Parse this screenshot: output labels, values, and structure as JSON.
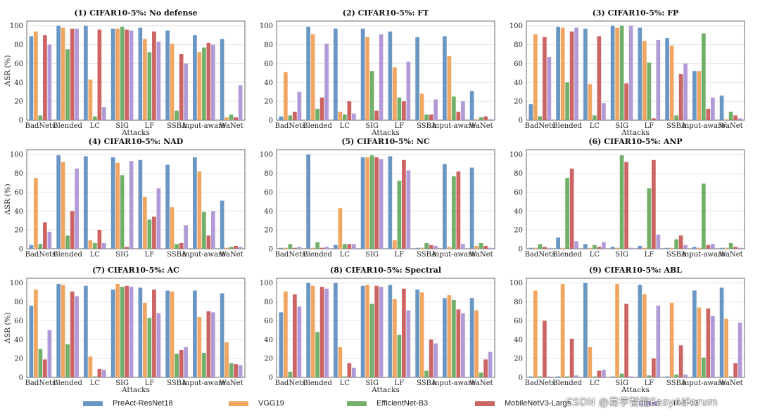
{
  "colors": [
    "#6a96c4",
    "#f0a660",
    "#72b06a",
    "#cd6464",
    "#b29ad6"
  ],
  "legend": [
    "PreAct-ResNet18",
    "VGG19",
    "EfficientNet-B3",
    "MobileNetV3-Large",
    "ViT-B-16"
  ],
  "watermark": "CSDN @易学智能EasyAIForum",
  "chart_data": [
    {
      "type": "bar",
      "title": "(1) CIFAR10-5%: No defense",
      "xlabel": "Attacks",
      "ylabel": "ASR (%)",
      "ylim": [
        0,
        105
      ],
      "yticks": [
        0,
        20,
        40,
        60,
        80,
        100
      ],
      "categories": [
        "BadNets",
        "Blended",
        "LC",
        "SIG",
        "LF",
        "SSBA",
        "Input-aware",
        "WaNet"
      ],
      "series": [
        {
          "name": "PreAct-ResNet18",
          "values": [
            89,
            100,
            100,
            97,
            98,
            95,
            90,
            86
          ]
        },
        {
          "name": "VGG19",
          "values": [
            94,
            98,
            43,
            97,
            86,
            81,
            72,
            3
          ]
        },
        {
          "name": "EfficientNet-B3",
          "values": [
            5,
            75,
            4,
            99,
            72,
            10,
            77,
            6
          ]
        },
        {
          "name": "MobileNetV3-Large",
          "values": [
            90,
            97,
            96,
            96,
            94,
            70,
            82,
            3
          ]
        },
        {
          "name": "ViT-B-16",
          "values": [
            80,
            97,
            14,
            95,
            83,
            60,
            80,
            37
          ]
        }
      ]
    },
    {
      "type": "bar",
      "title": "(2) CIFAR10-5%: FT",
      "xlabel": "Attacks",
      "ylabel": "",
      "ylim": [
        0,
        105
      ],
      "yticks": [
        0,
        20,
        40,
        60,
        80,
        100
      ],
      "categories": [
        "BadNets",
        "Blended",
        "LC",
        "SIG",
        "LF",
        "SSBA",
        "Input-aware",
        "WaNet"
      ],
      "series": [
        {
          "name": "PreAct-ResNet18",
          "values": [
            4,
            99,
            97,
            97,
            94,
            88,
            89,
            31
          ]
        },
        {
          "name": "VGG19",
          "values": [
            51,
            91,
            9,
            88,
            56,
            28,
            68,
            1
          ]
        },
        {
          "name": "EfficientNet-B3",
          "values": [
            5,
            12,
            6,
            52,
            24,
            6,
            25,
            3
          ]
        },
        {
          "name": "MobileNetV3-Large",
          "values": [
            9,
            24,
            20,
            10,
            20,
            6,
            9,
            4
          ]
        },
        {
          "name": "ViT-B-16",
          "values": [
            30,
            81,
            7,
            91,
            62,
            22,
            20,
            1
          ]
        }
      ]
    },
    {
      "type": "bar",
      "title": "(3) CIFAR10-5%: FP",
      "xlabel": "Attacks",
      "ylabel": "",
      "ylim": [
        0,
        105
      ],
      "yticks": [
        0,
        20,
        40,
        60,
        80,
        100
      ],
      "categories": [
        "BadNets",
        "Blended",
        "LC",
        "SIG",
        "LF",
        "SSBA",
        "Input-aware",
        "WaNet"
      ],
      "series": [
        {
          "name": "PreAct-ResNet18",
          "values": [
            17,
            99,
            97,
            100,
            98,
            87,
            52,
            26
          ]
        },
        {
          "name": "VGG19",
          "values": [
            91,
            98,
            38,
            98,
            84,
            79,
            52,
            1
          ]
        },
        {
          "name": "EfficientNet-B3",
          "values": [
            4,
            40,
            5,
            100,
            61,
            5,
            92,
            9
          ]
        },
        {
          "name": "MobileNetV3-Large",
          "values": [
            88,
            94,
            89,
            39,
            2,
            49,
            12,
            5
          ]
        },
        {
          "name": "ViT-B-16",
          "values": [
            67,
            98,
            18,
            100,
            85,
            60,
            24,
            2
          ]
        }
      ]
    },
    {
      "type": "bar",
      "title": "(4) CIFAR10-5%: NAD",
      "xlabel": "",
      "ylabel": "ASR (%)",
      "ylim": [
        0,
        105
      ],
      "yticks": [
        0,
        20,
        40,
        60,
        80,
        100
      ],
      "categories": [
        "BadNets",
        "Blended",
        "LC",
        "SIG",
        "LF",
        "SSBA",
        "Input-aware",
        "WaNet"
      ],
      "series": [
        {
          "name": "PreAct-ResNet18",
          "values": [
            4,
            99,
            98,
            97,
            94,
            89,
            97,
            51
          ]
        },
        {
          "name": "VGG19",
          "values": [
            75,
            92,
            9,
            91,
            55,
            44,
            82,
            1
          ]
        },
        {
          "name": "EfficientNet-B3",
          "values": [
            5,
            14,
            6,
            78,
            31,
            5,
            39,
            2
          ]
        },
        {
          "name": "MobileNetV3-Large",
          "values": [
            28,
            40,
            20,
            2,
            34,
            6,
            14,
            3
          ]
        },
        {
          "name": "ViT-B-16",
          "values": [
            18,
            85,
            6,
            93,
            64,
            25,
            40,
            2
          ]
        }
      ]
    },
    {
      "type": "bar",
      "title": "(5) CIFAR10-5%: NC",
      "xlabel": "",
      "ylabel": "",
      "ylim": [
        0,
        105
      ],
      "yticks": [
        0,
        20,
        40,
        60,
        80,
        100
      ],
      "categories": [
        "BadNets",
        "Blended",
        "LC",
        "SIG",
        "LF",
        "SSBA",
        "Input-aware",
        "WaNet"
      ],
      "series": [
        {
          "name": "PreAct-ResNet18",
          "values": [
            1,
            100,
            4,
            97,
            98,
            1,
            90,
            86
          ]
        },
        {
          "name": "VGG19",
          "values": [
            1,
            1,
            43,
            97,
            9,
            1,
            2,
            3
          ]
        },
        {
          "name": "EfficientNet-B3",
          "values": [
            5,
            7,
            5,
            99,
            72,
            6,
            77,
            6
          ]
        },
        {
          "name": "MobileNetV3-Large",
          "values": [
            1,
            1,
            5,
            97,
            94,
            4,
            82,
            3
          ]
        },
        {
          "name": "ViT-B-16",
          "values": [
            2,
            2,
            5,
            95,
            83,
            3,
            5,
            1
          ]
        }
      ]
    },
    {
      "type": "bar",
      "title": "(6) CIFAR10-5%: ANP",
      "xlabel": "",
      "ylabel": "",
      "ylim": [
        0,
        105
      ],
      "yticks": [
        0,
        20,
        40,
        60,
        80,
        100
      ],
      "categories": [
        "BadNets",
        "Blended",
        "LC",
        "SIG",
        "LF",
        "SSBA",
        "Input-aware",
        "WaNet"
      ],
      "series": [
        {
          "name": "PreAct-ResNet18",
          "values": [
            1,
            12,
            5,
            2,
            3,
            1,
            2,
            1
          ]
        },
        {
          "name": "VGG19",
          "values": [
            1,
            1,
            1,
            1,
            1,
            1,
            1,
            1
          ]
        },
        {
          "name": "EfficientNet-B3",
          "values": [
            5,
            75,
            4,
            99,
            64,
            10,
            69,
            6
          ]
        },
        {
          "name": "MobileNetV3-Large",
          "values": [
            2,
            85,
            2,
            92,
            94,
            14,
            4,
            2
          ]
        },
        {
          "name": "ViT-B-16",
          "values": [
            1,
            8,
            7,
            1,
            15,
            4,
            5,
            1
          ]
        }
      ]
    },
    {
      "type": "bar",
      "title": "(7) CIFAR10-5%: AC",
      "xlabel": "Attacks",
      "ylabel": "ASR (%)",
      "ylim": [
        0,
        105
      ],
      "yticks": [
        0,
        20,
        40,
        60,
        80,
        100
      ],
      "categories": [
        "BadNets",
        "Blended",
        "LC",
        "SIG",
        "LF",
        "SSBA",
        "Input-aware",
        "WaNet"
      ],
      "series": [
        {
          "name": "PreAct-ResNet18",
          "values": [
            76,
            99,
            97,
            93,
            95,
            92,
            92,
            89
          ]
        },
        {
          "name": "VGG19",
          "values": [
            93,
            98,
            22,
            99,
            79,
            91,
            64,
            37
          ]
        },
        {
          "name": "EfficientNet-B3",
          "values": [
            30,
            35,
            1,
            96,
            63,
            25,
            26,
            15
          ]
        },
        {
          "name": "MobileNetV3-Large",
          "values": [
            19,
            91,
            9,
            97,
            93,
            29,
            70,
            14
          ]
        },
        {
          "name": "ViT-B-16",
          "values": [
            50,
            86,
            8,
            96,
            68,
            32,
            69,
            13
          ]
        }
      ]
    },
    {
      "type": "bar",
      "title": "(8) CIFAR10-5%: Spectral",
      "xlabel": "Attacks",
      "ylabel": "",
      "ylim": [
        0,
        105
      ],
      "yticks": [
        0,
        20,
        40,
        60,
        80,
        100
      ],
      "categories": [
        "BadNets",
        "Blended",
        "LC",
        "SIG",
        "LF",
        "SSBA",
        "Input-aware",
        "WaNet"
      ],
      "series": [
        {
          "name": "PreAct-ResNet18",
          "values": [
            69,
            100,
            100,
            97,
            98,
            93,
            84,
            84
          ]
        },
        {
          "name": "VGG19",
          "values": [
            91,
            97,
            32,
            98,
            83,
            90,
            87,
            71
          ]
        },
        {
          "name": "EfficientNet-B3",
          "values": [
            6,
            48,
            1,
            78,
            45,
            7,
            82,
            5
          ]
        },
        {
          "name": "MobileNetV3-Large",
          "values": [
            88,
            96,
            15,
            97,
            94,
            40,
            72,
            19
          ]
        },
        {
          "name": "ViT-B-16",
          "values": [
            75,
            94,
            10,
            96,
            71,
            36,
            68,
            27
          ]
        }
      ]
    },
    {
      "type": "bar",
      "title": "(9) CIFAR10-5%: ABL",
      "xlabel": "Attacks",
      "ylabel": "",
      "ylim": [
        0,
        105
      ],
      "yticks": [
        0,
        20,
        40,
        60,
        80,
        100
      ],
      "categories": [
        "BadNets",
        "Blended",
        "LC",
        "SIG",
        "LF",
        "SSBA",
        "Input-aware",
        "WaNet"
      ],
      "series": [
        {
          "name": "PreAct-ResNet18",
          "values": [
            1,
            1,
            100,
            1,
            98,
            1,
            92,
            95
          ]
        },
        {
          "name": "VGG19",
          "values": [
            92,
            99,
            32,
            99,
            88,
            79,
            74,
            62
          ]
        },
        {
          "name": "EfficientNet-B3",
          "values": [
            1,
            1,
            1,
            4,
            2,
            3,
            21,
            1
          ]
        },
        {
          "name": "MobileNetV3-Large",
          "values": [
            60,
            41,
            7,
            78,
            20,
            34,
            73,
            15
          ]
        },
        {
          "name": "ViT-B-16",
          "values": [
            1,
            2,
            8,
            1,
            76,
            3,
            65,
            58
          ]
        }
      ]
    }
  ]
}
